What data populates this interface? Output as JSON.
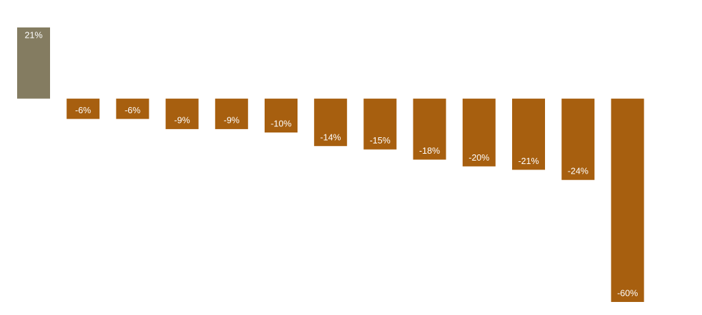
{
  "chart_data": {
    "type": "bar",
    "categories": [
      null,
      null,
      null,
      null,
      null,
      null,
      null,
      null,
      null,
      null,
      null,
      null,
      null
    ],
    "values": [
      21,
      -6,
      -6,
      -9,
      -9,
      -10,
      -14,
      -15,
      -18,
      -20,
      -21,
      -24,
      -60
    ],
    "value_labels": [
      "21%",
      "-6%",
      "-6%",
      "-9%",
      "-9%",
      "-10%",
      "-14%",
      "-15%",
      "-18%",
      "-20%",
      "-21%",
      "-24%",
      "-60%"
    ],
    "colors": [
      "#847c61",
      "#a75f0f",
      "#a75f0f",
      "#a75f0f",
      "#a75f0f",
      "#a75f0f",
      "#a75f0f",
      "#a75f0f",
      "#a75f0f",
      "#a75f0f",
      "#a75f0f",
      "#a75f0f",
      "#a75f0f"
    ]
  }
}
